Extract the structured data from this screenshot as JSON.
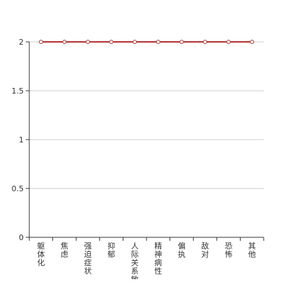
{
  "chart_data": {
    "type": "line",
    "title": "",
    "xlabel": "",
    "ylabel": "",
    "categories": [
      "躯体化",
      "焦虑",
      "强迫症状",
      "抑郁",
      "人际关系敏感",
      "精神病性",
      "偏执",
      "敌对",
      "恐怖",
      "其他"
    ],
    "series": [
      {
        "values": [
          2,
          2,
          2,
          2,
          2,
          2,
          2,
          2,
          2,
          2
        ]
      }
    ],
    "ylim": [
      0,
      2
    ],
    "yticks": [
      "0",
      "0.5",
      "1",
      "1.5",
      "2"
    ],
    "grid": true,
    "legend": "none"
  },
  "colors": {
    "line": "#b3322f",
    "marker_fill": "#ffffff",
    "axis": "#333333",
    "grid": "#cccccc",
    "text": "#333333"
  }
}
